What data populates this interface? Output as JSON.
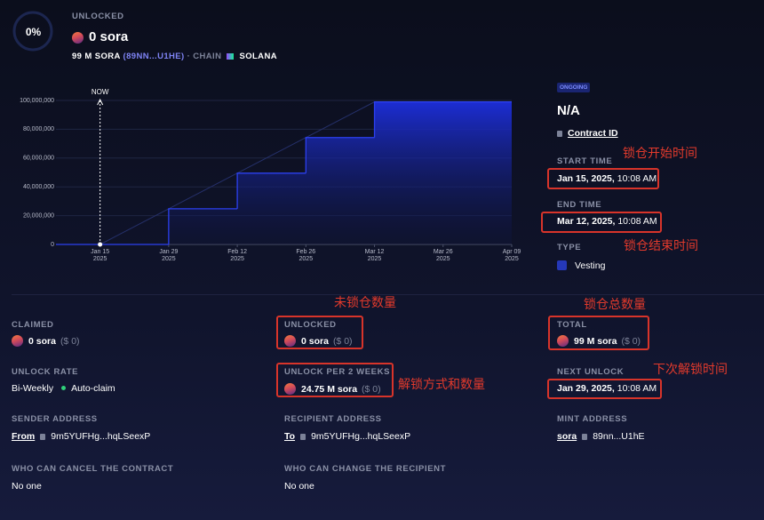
{
  "header": {
    "progress": "0%",
    "status": "UNLOCKED",
    "amount": "0 sora",
    "total": "99 M SORA",
    "address": "(89NN...U1HE)",
    "separator": "·",
    "chain_label": "CHAIN",
    "chain": "SOLANA"
  },
  "chart_data": {
    "type": "step",
    "x": [
      "2025-01-15",
      "2025-01-29",
      "2025-02-12",
      "2025-02-26",
      "2025-03-12",
      "2025-04-09"
    ],
    "values": [
      0,
      24750000,
      49500000,
      74250000,
      99000000,
      99000000
    ],
    "color": "#2c40f0",
    "reference": {
      "x": [
        "2025-01-15",
        "2025-03-12"
      ],
      "values": [
        0,
        99000000
      ],
      "color": "#25306a"
    },
    "now": {
      "label": "NOW",
      "x": "2025-01-15"
    },
    "xlim": [
      "2025-01-06",
      "2025-04-09"
    ],
    "ylim": [
      0,
      100000000
    ],
    "xticks": [
      {
        "value": "2025-01-15",
        "label": "Jan 15\n2025"
      },
      {
        "value": "2025-01-29",
        "label": "Jan 29\n2025"
      },
      {
        "value": "2025-02-12",
        "label": "Feb 12\n2025"
      },
      {
        "value": "2025-02-26",
        "label": "Feb 26\n2025"
      },
      {
        "value": "2025-03-12",
        "label": "Mar 12\n2025"
      },
      {
        "value": "2025-03-26",
        "label": "Mar 26\n2025"
      },
      {
        "value": "2025-04-09",
        "label": "Apr 09\n2025"
      }
    ],
    "yticks": [
      0,
      {
        "value": 20000000,
        "label": "20,000,000"
      },
      {
        "value": 40000000,
        "label": "40,000,000"
      },
      {
        "value": 60000000,
        "label": "60,000,000"
      },
      {
        "value": 80000000,
        "label": "80,000,000"
      },
      {
        "value": 100000000,
        "label": "100,000,000"
      }
    ],
    "grid": true
  },
  "contract": {
    "status": "ONGOING",
    "name": "N/A",
    "contract_id": "Contract ID",
    "start_label": "START TIME",
    "start_date": "Jan 15, 2025,",
    "start_time": "10:08 AM",
    "end_label": "END TIME",
    "end_date": "Mar 12, 2025,",
    "end_time": "10:08 AM",
    "type_label": "TYPE",
    "type": "Vesting"
  },
  "details": {
    "claimed": {
      "label": "CLAIMED",
      "value": "0 sora",
      "usd": "($ 0)"
    },
    "unlocked": {
      "label": "UNLOCKED",
      "value": "0 sora",
      "usd": "($ 0)"
    },
    "total": {
      "label": "TOTAL",
      "value": "99 M sora",
      "usd": "($ 0)"
    },
    "rate": {
      "label": "UNLOCK RATE",
      "value": "Bi-Weekly",
      "extra": "Auto-claim"
    },
    "per_period": {
      "label": "UNLOCK PER 2 WEEKS",
      "value": "24.75 M sora",
      "usd": "($ 0)"
    },
    "next_unlock": {
      "label": "NEXT UNLOCK",
      "date": "Jan 29, 2025,",
      "time": "10:08 AM"
    },
    "sender": {
      "label": "SENDER ADDRESS",
      "link": "From",
      "value": "9m5YUFHg...hqLSeexP"
    },
    "recipient": {
      "label": "RECIPIENT ADDRESS",
      "link": "To",
      "value": "9m5YUFHg...hqLSeexP"
    },
    "mint": {
      "label": "MINT ADDRESS",
      "link": "sora",
      "value": "89nn...U1hE"
    },
    "cancel": {
      "label": "WHO CAN CANCEL THE CONTRACT",
      "value": "No one"
    },
    "change": {
      "label": "WHO CAN CHANGE THE RECIPIENT",
      "value": "No one"
    }
  },
  "annotations": {
    "start": "锁仓开始时间",
    "end": "锁仓结束时间",
    "unlocked": "未锁仓数量",
    "total": "锁仓总数量",
    "per_period": "解锁方式和数量",
    "next_unlock": "下次解锁时间"
  }
}
